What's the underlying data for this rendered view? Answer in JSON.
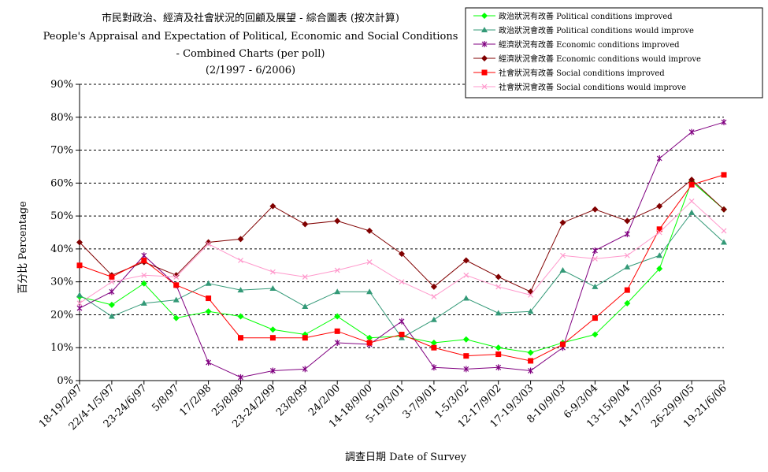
{
  "chart_data": {
    "type": "line",
    "title_lines": [
      "市民對政治、經濟及社會狀況的回顧及展望 - 綜合圖表 (按次計算)",
      "People's Appraisal and Expectation of Political, Economic and Social Conditions",
      "- Combined Charts  (per poll)",
      "(2/1997 - 6/2006)"
    ],
    "xlabel": "調查日期 Date of Survey",
    "ylabel": "百分比 Percentage",
    "ylim": [
      0,
      90
    ],
    "yticks": [
      "0%",
      "10%",
      "20%",
      "30%",
      "40%",
      "50%",
      "60%",
      "70%",
      "80%",
      "90%"
    ],
    "grid": "horizontal dashed",
    "legend_position": "top-right",
    "categories": [
      "18-19/2/97",
      "22/4-1/5/97",
      "23-24/6/97",
      "5/8/97",
      "17/2/98",
      "25/8/98",
      "23-24/2/99",
      "23/8/99",
      "24/2/00",
      "14-18/9/00",
      "5-19/3/01",
      "3-7/9/01",
      "1-5/3/02",
      "12-17/9/02",
      "17-19/3/03",
      "8-10/9/03",
      "6-9/3/04",
      "13-15/9/04",
      "14-17/3/05",
      "26-29/9/05",
      "19-21/6/06"
    ],
    "series": [
      {
        "name": "政治狀況有改善 Political conditions improved",
        "color": "#00ff00",
        "marker": "diamond",
        "values": [
          25.5,
          23,
          29.5,
          19,
          21,
          19.5,
          15.5,
          14,
          19.5,
          13,
          13.5,
          11.5,
          12.5,
          10,
          8.5,
          11.5,
          14,
          23.5,
          34,
          60.5,
          52
        ]
      },
      {
        "name": "政治狀況會改善 Political conditions would improve",
        "color": "#339977",
        "marker": "triangle",
        "values": [
          26,
          19.5,
          23.5,
          24.5,
          29.5,
          27.5,
          28,
          22.5,
          27,
          27,
          13,
          18.5,
          25,
          20.5,
          21,
          33.5,
          28.5,
          34.5,
          38,
          51,
          42
        ]
      },
      {
        "name": "經濟狀況有改善 Economic conditions improved",
        "color": "#800080",
        "marker": "star",
        "values": [
          22,
          27,
          38,
          29,
          5.5,
          1,
          3,
          3.5,
          11.5,
          11,
          18,
          4,
          3.5,
          4,
          3,
          10,
          39.5,
          44.5,
          67.5,
          75.5,
          78.5
        ]
      },
      {
        "name": "經濟狀況會改善 Economic conditions would improve",
        "color": "#800000",
        "marker": "diamond",
        "values": [
          42,
          32,
          36,
          32,
          42,
          43,
          53,
          47.5,
          48.5,
          45.5,
          38.5,
          28.5,
          36.5,
          31.5,
          27,
          48,
          52,
          48.5,
          53,
          61,
          52
        ]
      },
      {
        "name": "社會狀況有改善 Social conditions improved",
        "color": "#ff0000",
        "marker": "square",
        "values": [
          35,
          31.5,
          36.5,
          29,
          25,
          13,
          13,
          13,
          15,
          11.5,
          14,
          10,
          7.5,
          8,
          6,
          11,
          19,
          27.5,
          46,
          59.5,
          62.5
        ]
      },
      {
        "name": "社會狀況會改善 Social conditions would improve",
        "color": "#ff99cc",
        "marker": "x",
        "values": [
          23.5,
          30,
          32,
          31.5,
          41.5,
          36.5,
          33,
          31.5,
          33.5,
          36,
          30,
          25.5,
          32,
          28.5,
          26,
          38,
          37,
          38,
          45,
          54.5,
          45.5
        ]
      }
    ]
  }
}
